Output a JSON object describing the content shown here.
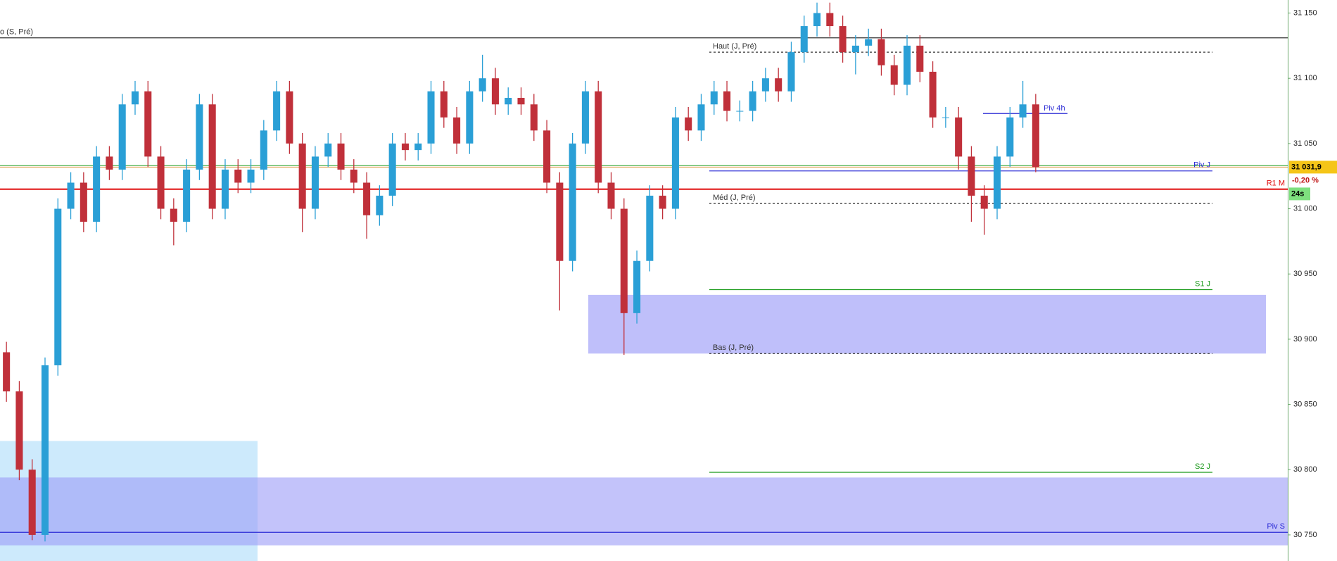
{
  "chart_data": {
    "type": "candlestick",
    "ylim": [
      30730,
      31160
    ],
    "yticks": [
      {
        "value": 30750,
        "label": "30 750"
      },
      {
        "value": 30800,
        "label": "30 800"
      },
      {
        "value": 30850,
        "label": "30 850"
      },
      {
        "value": 30900,
        "label": "30 900"
      },
      {
        "value": 30950,
        "label": "30 950"
      },
      {
        "value": 31000,
        "label": "31 000"
      },
      {
        "value": 31050,
        "label": "31 050"
      },
      {
        "value": 31100,
        "label": "31 100"
      },
      {
        "value": 31150,
        "label": "31 150"
      }
    ],
    "up_color": "#2a9fd6",
    "down_color": "#c0303a",
    "open": [
      30890,
      30860,
      30800,
      30750,
      30880,
      31000,
      31020,
      30990,
      31040,
      31030,
      31080,
      31090,
      31040,
      31000,
      30990,
      31030,
      31080,
      31000,
      31030,
      31020,
      31030,
      31060,
      31090,
      31050,
      31000,
      31040,
      31050,
      31030,
      31020,
      30995,
      31010,
      31050,
      31045,
      31050,
      31090,
      31070,
      31050,
      31090,
      31100,
      31080,
      31085,
      31080,
      31060,
      31020,
      30960,
      31050,
      31090,
      31020,
      31000,
      30920,
      30960,
      31010,
      31000,
      31070,
      31060,
      31080,
      31090,
      31075,
      31075,
      31090,
      31100,
      31090,
      31120,
      31140,
      31150,
      31140,
      31120,
      31125,
      31130,
      31110,
      31095,
      31125,
      31105,
      31070,
      31070,
      31040,
      31010,
      31000,
      31040,
      31070,
      31080
    ],
    "high": [
      30898,
      30868,
      30808,
      30886,
      31008,
      31028,
      31028,
      31048,
      31048,
      31088,
      31098,
      31098,
      31048,
      31008,
      31038,
      31088,
      31088,
      31038,
      31038,
      31038,
      31068,
      31098,
      31098,
      31058,
      31048,
      31058,
      31058,
      31038,
      31028,
      31018,
      31058,
      31058,
      31058,
      31098,
      31098,
      31078,
      31098,
      31118,
      31108,
      31093,
      31093,
      31088,
      31068,
      31028,
      31058,
      31098,
      31098,
      31028,
      31008,
      30968,
      31018,
      31018,
      31078,
      31078,
      31088,
      31098,
      31098,
      31083,
      31098,
      31108,
      31108,
      31128,
      31148,
      31158,
      31158,
      31148,
      31133,
      31138,
      31138,
      31118,
      31133,
      31133,
      31113,
      31078,
      31078,
      31048,
      31018,
      31048,
      31078,
      31098,
      31088
    ],
    "low": [
      30852,
      30792,
      30746,
      30745,
      30872,
      30992,
      30982,
      30982,
      31022,
      31022,
      31072,
      31032,
      30992,
      30972,
      30982,
      31022,
      30992,
      30992,
      31012,
      31012,
      31022,
      31052,
      31042,
      30982,
      30992,
      31032,
      31022,
      31012,
      30977,
      30987,
      31002,
      31037,
      31037,
      31042,
      31062,
      31042,
      31042,
      31082,
      31072,
      31072,
      31072,
      31052,
      31012,
      30922,
      30952,
      31042,
      31012,
      30992,
      30888,
      30912,
      30952,
      30992,
      30992,
      31052,
      31052,
      31072,
      31067,
      31067,
      31067,
      31082,
      31082,
      31082,
      31112,
      31132,
      31132,
      31112,
      31103,
      31117,
      31102,
      31087,
      31087,
      31097,
      31062,
      31062,
      31030,
      30990,
      30980,
      30992,
      31032,
      31062,
      31028
    ],
    "close": [
      30860,
      30800,
      30750,
      30880,
      31000,
      31020,
      30990,
      31040,
      31030,
      31080,
      31090,
      31040,
      31000,
      30990,
      31030,
      31080,
      31000,
      31030,
      31020,
      31030,
      31060,
      31090,
      31050,
      31000,
      31040,
      31050,
      31030,
      31020,
      30995,
      31010,
      31050,
      31045,
      31050,
      31090,
      31070,
      31050,
      31090,
      31100,
      31080,
      31085,
      31080,
      31060,
      31020,
      30960,
      31050,
      31090,
      31020,
      31000,
      30920,
      30960,
      31010,
      31000,
      31070,
      31060,
      31080,
      31090,
      31075,
      31075,
      31090,
      31100,
      31090,
      31120,
      31140,
      31150,
      31140,
      31120,
      31125,
      31130,
      31110,
      31095,
      31125,
      31105,
      31070,
      31070,
      31040,
      31010,
      31000,
      31040,
      31070,
      31080,
      31031.9
    ],
    "zones": [
      {
        "from": 30822,
        "to": 30730,
        "color": "#cdeafc"
      },
      {
        "from": 30794,
        "to": 30742,
        "color": "#9b9bf7"
      },
      {
        "from": 30934,
        "to": 30889,
        "color": "#bfbffa"
      }
    ],
    "levels": [
      {
        "label": "o (S, Pré)",
        "value": 31131,
        "color": "#333333"
      },
      {
        "label": "Haut (J, Pré)",
        "value": 31120,
        "color": "#333333",
        "dash": true
      },
      {
        "label": "Piv 4h",
        "value": 31073,
        "color": "#2b2bd6"
      },
      {
        "value": 31033,
        "color": "#5cb85c"
      },
      {
        "value": 31031.9,
        "color": "#e0a050"
      },
      {
        "label": "Piv J",
        "value": 31029,
        "color": "#2b2bd6"
      },
      {
        "label": "R1 M",
        "value": 31015,
        "color": "#e01010",
        "width": 2
      },
      {
        "label": "Méd (J, Pré)",
        "value": 31004,
        "color": "#333333",
        "dash": true
      },
      {
        "label": "S1 J",
        "value": 30938,
        "color": "#1a9a1a"
      },
      {
        "label": "Bas (J, Pré)",
        "value": 30889,
        "color": "#333333",
        "dash": true
      },
      {
        "label": "S2 J",
        "value": 30798,
        "color": "#1a9a1a"
      },
      {
        "label": "Piv S",
        "value": 30752,
        "color": "#2b2bd6"
      }
    ],
    "price_badge": {
      "value": 31031.9,
      "label": "31 031,9"
    },
    "change": "-0,20 %",
    "countdown": "24s"
  }
}
